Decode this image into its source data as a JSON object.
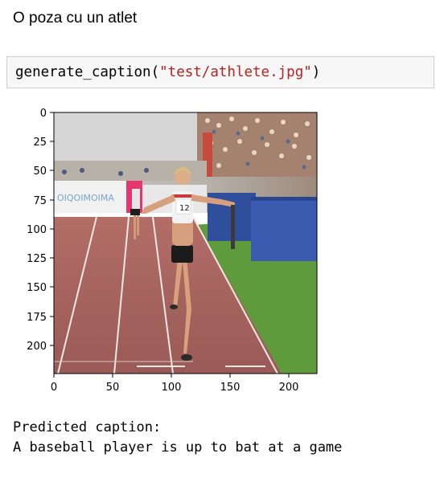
{
  "markdown": {
    "text": "O poza cu un atlet"
  },
  "code_cell": {
    "function_name": "generate_caption",
    "open_paren": "(",
    "argument": "\"test/athlete.jpg\"",
    "close_paren": ")"
  },
  "plot": {
    "y_ticks": [
      "0",
      "25",
      "50",
      "75",
      "100",
      "125",
      "150",
      "175",
      "200"
    ],
    "x_ticks": [
      "0",
      "50",
      "100",
      "150",
      "200"
    ],
    "bib_number": "12",
    "banner_text": "OIQOIMOIMA"
  },
  "output": {
    "label": "Predicted caption:",
    "caption": "A baseball player is up to bat at a game"
  }
}
